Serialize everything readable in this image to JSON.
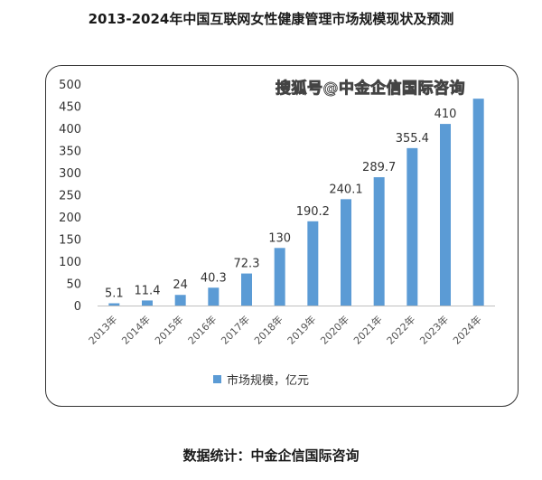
{
  "title": "2013-2024年中国互联网女性健康管理市场规模现状及预测",
  "watermark": "搜狐号@中金企信国际咨询",
  "source": "数据统计：中金企信国际咨询",
  "chart_data": {
    "type": "bar",
    "categories": [
      "2013年",
      "2014年",
      "2015年",
      "2016年",
      "2017年",
      "2018年",
      "2019年",
      "2020年",
      "2021年",
      "2022年",
      "2023年",
      "2024年"
    ],
    "series": [
      {
        "name": "市场规模，亿元",
        "values": [
          5.1,
          11.4,
          24,
          40.3,
          72.3,
          130,
          190.2,
          240.1,
          289.7,
          355.4,
          410,
          467
        ],
        "labels": [
          "5.1",
          "11.4",
          "24",
          "40.3",
          "72.3",
          "130",
          "190.2",
          "240.1",
          "289.7",
          "355.4",
          "410",
          ""
        ]
      }
    ],
    "yticks": [
      0,
      50,
      100,
      150,
      200,
      250,
      300,
      350,
      400,
      450,
      500
    ],
    "ylim": [
      0,
      500
    ],
    "grid": false,
    "legend": "bottom",
    "colors": {
      "bar": "#5b9bd5",
      "axis": "#bfbfbf"
    }
  }
}
